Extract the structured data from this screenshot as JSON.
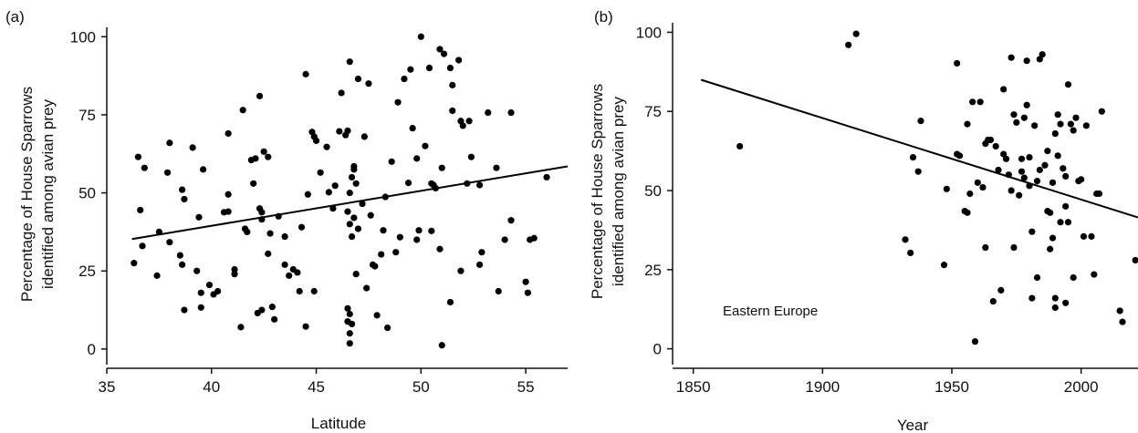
{
  "chart_data": [
    {
      "panel_label": "(a)",
      "type": "scatter",
      "xlabel": "Latitude",
      "ylabel": [
        "Percentage of House Sparrows",
        "identified among avian prey"
      ],
      "xlim": [
        35,
        57
      ],
      "ylim": [
        -5,
        103
      ],
      "xticks": [
        35,
        40,
        45,
        50,
        55
      ],
      "yticks": [
        0,
        25,
        50,
        75,
        100
      ],
      "regression_line": {
        "x": [
          36.2,
          57.0
        ],
        "y": [
          35.2,
          58.5
        ]
      },
      "points": [
        [
          36.5,
          61.5
        ],
        [
          36.8,
          58
        ],
        [
          36.6,
          44.5
        ],
        [
          36.3,
          27.5
        ],
        [
          36.7,
          33
        ],
        [
          37.4,
          23.5
        ],
        [
          37.5,
          37.5
        ],
        [
          38.0,
          34.2
        ],
        [
          38.0,
          66
        ],
        [
          37.9,
          56.5
        ],
        [
          38.6,
          51
        ],
        [
          38.7,
          48
        ],
        [
          38.5,
          30
        ],
        [
          38.7,
          12.5
        ],
        [
          38.6,
          27
        ],
        [
          39.1,
          64.5
        ],
        [
          39.4,
          42.2
        ],
        [
          39.6,
          57.5
        ],
        [
          39.5,
          18
        ],
        [
          39.5,
          13.3
        ],
        [
          39.3,
          25
        ],
        [
          39.9,
          20.5
        ],
        [
          40.1,
          17.5
        ],
        [
          40.6,
          43.8
        ],
        [
          40.3,
          18.5
        ],
        [
          40.8,
          69
        ],
        [
          40.8,
          49.5
        ],
        [
          40.8,
          44
        ],
        [
          41.1,
          25.5
        ],
        [
          41.1,
          24
        ],
        [
          41.5,
          76.5
        ],
        [
          41.6,
          38.5
        ],
        [
          41.7,
          37.5
        ],
        [
          41.9,
          60.5
        ],
        [
          42.1,
          61
        ],
        [
          42.0,
          53
        ],
        [
          41.4,
          7
        ],
        [
          42.3,
          81
        ],
        [
          42.5,
          63.2
        ],
        [
          42.3,
          45
        ],
        [
          42.4,
          43.8
        ],
        [
          42.4,
          41.5
        ],
        [
          42.2,
          11.5
        ],
        [
          42.4,
          12.5
        ],
        [
          42.7,
          61.5
        ],
        [
          42.8,
          37
        ],
        [
          42.7,
          30.5
        ],
        [
          42.9,
          13.5
        ],
        [
          43.0,
          9.5
        ],
        [
          43.2,
          42.5
        ],
        [
          43.5,
          36
        ],
        [
          43.5,
          27
        ],
        [
          43.7,
          23.5
        ],
        [
          43.9,
          25.5
        ],
        [
          44.3,
          39
        ],
        [
          44.2,
          18.5
        ],
        [
          44.1,
          24.5
        ],
        [
          44.5,
          88
        ],
        [
          44.6,
          49.5
        ],
        [
          44.8,
          69.5
        ],
        [
          44.9,
          68
        ],
        [
          45.0,
          66.7
        ],
        [
          44.9,
          18.5
        ],
        [
          44.5,
          7.2
        ],
        [
          45.2,
          56.5
        ],
        [
          45.5,
          64.7
        ],
        [
          45.6,
          50.2
        ],
        [
          45.9,
          52.3
        ],
        [
          46.1,
          69.7
        ],
        [
          46.2,
          82
        ],
        [
          46.4,
          68.5
        ],
        [
          46.5,
          69.9
        ],
        [
          46.6,
          92
        ],
        [
          46.7,
          55
        ],
        [
          46.8,
          57.5
        ],
        [
          46.9,
          53
        ],
        [
          46.8,
          58.5
        ],
        [
          46.6,
          50
        ],
        [
          46.5,
          44
        ],
        [
          46.6,
          40
        ],
        [
          46.7,
          36
        ],
        [
          46.9,
          24
        ],
        [
          46.5,
          13
        ],
        [
          46.6,
          11.2
        ],
        [
          46.5,
          8.8
        ],
        [
          46.7,
          8
        ],
        [
          46.6,
          5
        ],
        [
          46.6,
          1.8
        ],
        [
          46.8,
          42
        ],
        [
          47.0,
          86.5
        ],
        [
          47.0,
          38.5
        ],
        [
          47.3,
          68
        ],
        [
          47.5,
          85
        ],
        [
          47.6,
          42.8
        ],
        [
          47.7,
          27
        ],
        [
          47.8,
          26.5
        ],
        [
          47.9,
          10.8
        ],
        [
          48.1,
          30.3
        ],
        [
          48.3,
          48.7
        ],
        [
          48.4,
          6.8
        ],
        [
          48.6,
          60
        ],
        [
          48.9,
          79
        ],
        [
          49.2,
          86.5
        ],
        [
          49.5,
          89.5
        ],
        [
          49.6,
          70.7
        ],
        [
          49.8,
          61
        ],
        [
          49.9,
          38
        ],
        [
          49.8,
          35
        ],
        [
          50.0,
          100
        ],
        [
          50.2,
          65
        ],
        [
          50.4,
          90
        ],
        [
          50.5,
          53
        ],
        [
          50.6,
          52.5
        ],
        [
          50.5,
          37.8
        ],
        [
          50.7,
          51.5
        ],
        [
          50.9,
          96
        ],
        [
          51.1,
          94.5
        ],
        [
          51.0,
          58
        ],
        [
          50.9,
          32
        ],
        [
          51.0,
          1.2
        ],
        [
          51.4,
          90
        ],
        [
          51.5,
          84.5
        ],
        [
          51.5,
          76.3
        ],
        [
          51.8,
          92.5
        ],
        [
          51.9,
          73
        ],
        [
          52.0,
          71.5
        ],
        [
          52.3,
          73
        ],
        [
          52.2,
          53
        ],
        [
          52.4,
          61.5
        ],
        [
          51.4,
          15
        ],
        [
          51.9,
          25
        ],
        [
          52.8,
          52.5
        ],
        [
          52.9,
          31
        ],
        [
          52.8,
          27
        ],
        [
          53.2,
          75.7
        ],
        [
          53.6,
          58
        ],
        [
          54.0,
          35
        ],
        [
          53.7,
          18.5
        ],
        [
          54.3,
          75.7
        ],
        [
          54.3,
          41.2
        ],
        [
          55.0,
          21.5
        ],
        [
          55.1,
          18
        ],
        [
          55.4,
          35.5
        ],
        [
          55.2,
          35
        ],
        [
          56.0,
          55
        ],
        [
          49.0,
          35.8
        ],
        [
          49.4,
          53.2
        ],
        [
          48.8,
          31
        ],
        [
          47.2,
          46.5
        ],
        [
          45.8,
          45
        ],
        [
          47.4,
          19.5
        ],
        [
          48.2,
          38
        ]
      ]
    },
    {
      "panel_label": "(b)",
      "type": "scatter",
      "xlabel": "Year",
      "ylabel": [
        "Percentage of House Sparrows",
        "identified among avian prey"
      ],
      "xlim": [
        1842,
        2022
      ],
      "ylim": [
        -5,
        103
      ],
      "xticks": [
        1850,
        1900,
        1950,
        2000
      ],
      "yticks": [
        0,
        25,
        50,
        75,
        100
      ],
      "annotation": "Eastern Europe",
      "regression_line": {
        "x": [
          1853,
          2022
        ],
        "y": [
          85,
          41.5
        ]
      },
      "points": [
        [
          1868,
          64
        ],
        [
          1910,
          96
        ],
        [
          1913,
          99.5
        ],
        [
          1932,
          34.5
        ],
        [
          1934,
          30.3
        ],
        [
          1935,
          60.5
        ],
        [
          1937,
          56
        ],
        [
          1938,
          72
        ],
        [
          1947,
          26.5
        ],
        [
          1948,
          50.5
        ],
        [
          1952,
          90.2
        ],
        [
          1952,
          61.5
        ],
        [
          1953,
          61
        ],
        [
          1955,
          43.5
        ],
        [
          1956,
          43
        ],
        [
          1956,
          71
        ],
        [
          1957,
          49
        ],
        [
          1958,
          78
        ],
        [
          1959,
          2.3
        ],
        [
          1960,
          52.5
        ],
        [
          1961,
          78
        ],
        [
          1962,
          51
        ],
        [
          1963,
          64.8
        ],
        [
          1963,
          32
        ],
        [
          1964,
          66
        ],
        [
          1965,
          66
        ],
        [
          1966,
          15
        ],
        [
          1967,
          64
        ],
        [
          1968,
          56.5
        ],
        [
          1969,
          18.5
        ],
        [
          1970,
          82
        ],
        [
          1970,
          61.5
        ],
        [
          1971,
          60
        ],
        [
          1972,
          55
        ],
        [
          1973,
          92
        ],
        [
          1973,
          50
        ],
        [
          1974,
          74
        ],
        [
          1974,
          32
        ],
        [
          1975,
          71.5
        ],
        [
          1976,
          48.5
        ],
        [
          1977,
          60
        ],
        [
          1977,
          56
        ],
        [
          1978,
          54
        ],
        [
          1978,
          73
        ],
        [
          1979,
          91
        ],
        [
          1979,
          77
        ],
        [
          1980,
          60.5
        ],
        [
          1980,
          51.5
        ],
        [
          1981,
          37
        ],
        [
          1981,
          16
        ],
        [
          1982,
          70.5
        ],
        [
          1983,
          53
        ],
        [
          1983,
          22.5
        ],
        [
          1984,
          91.5
        ],
        [
          1984,
          56.5
        ],
        [
          1985,
          93
        ],
        [
          1986,
          58
        ],
        [
          1987,
          62.5
        ],
        [
          1987,
          43.5
        ],
        [
          1988,
          43
        ],
        [
          1988,
          31.5
        ],
        [
          1989,
          52.5
        ],
        [
          1989,
          35
        ],
        [
          1990,
          68
        ],
        [
          1990,
          16
        ],
        [
          1990,
          13
        ],
        [
          1991,
          74
        ],
        [
          1991,
          61
        ],
        [
          1992,
          71
        ],
        [
          1992,
          40
        ],
        [
          1993,
          57
        ],
        [
          1994,
          54.5
        ],
        [
          1994,
          45
        ],
        [
          1994,
          14.5
        ],
        [
          1995,
          40
        ],
        [
          1995,
          83.5
        ],
        [
          1996,
          71
        ],
        [
          1997,
          69
        ],
        [
          1997,
          22.5
        ],
        [
          1998,
          73
        ],
        [
          1999,
          53
        ],
        [
          2000,
          53.5
        ],
        [
          2001,
          35.5
        ],
        [
          2002,
          70.5
        ],
        [
          2004,
          35.5
        ],
        [
          2005,
          23.5
        ],
        [
          2006,
          49
        ],
        [
          2007,
          49
        ],
        [
          2008,
          75
        ],
        [
          2015,
          12
        ],
        [
          2016,
          8.5
        ],
        [
          2021,
          28
        ]
      ]
    }
  ]
}
